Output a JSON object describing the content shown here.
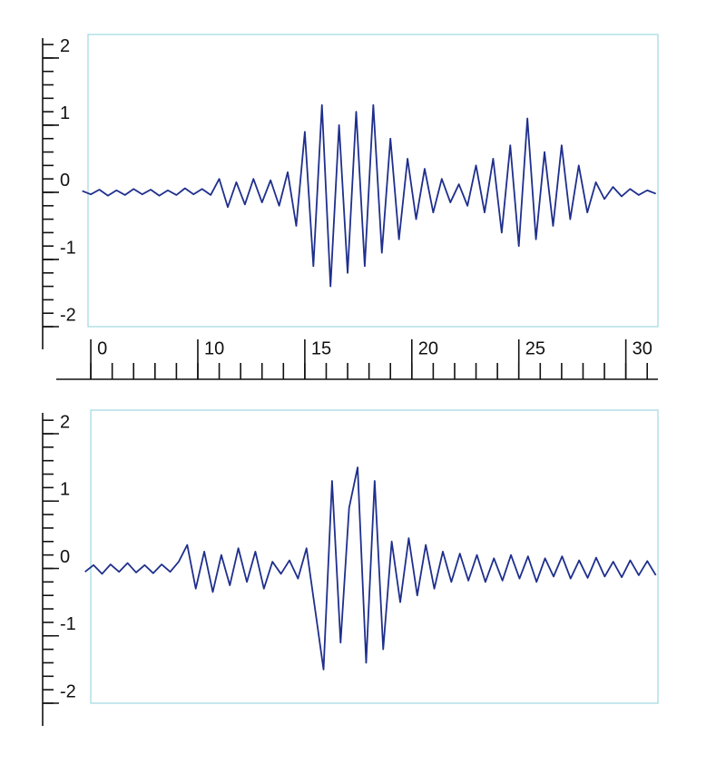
{
  "chart_data": [
    {
      "type": "line",
      "x": [
        -0.4,
        0,
        0.4,
        0.8,
        1.2,
        1.6,
        2,
        2.4,
        2.8,
        3.2,
        3.6,
        4,
        4.4,
        4.8,
        5.2,
        5.6,
        6,
        6.4,
        6.8,
        7.2,
        7.6,
        8,
        8.4,
        8.8,
        9.2,
        9.6,
        10,
        10.4,
        10.8,
        11.2,
        11.6,
        12,
        12.4,
        12.8,
        13.2,
        13.6,
        14,
        14.4,
        14.8,
        15.2,
        15.6,
        16,
        16.4,
        16.8,
        17.2,
        17.6,
        18,
        18.4,
        18.8,
        19.2,
        19.6,
        20,
        20.4,
        20.8,
        21.2,
        21.6,
        22,
        22.4,
        22.8,
        23.2,
        23.6,
        24,
        24.4,
        24.8,
        25.2,
        25.6,
        26,
        26.4
      ],
      "values": [
        0.02,
        -0.03,
        0.04,
        -0.05,
        0.03,
        -0.04,
        0.05,
        -0.03,
        0.04,
        -0.05,
        0.03,
        -0.04,
        0.06,
        -0.03,
        0.05,
        -0.04,
        0.2,
        -0.22,
        0.15,
        -0.18,
        0.2,
        -0.15,
        0.18,
        -0.2,
        0.3,
        -0.5,
        0.9,
        -1.1,
        1.3,
        -1.4,
        1.0,
        -1.2,
        1.2,
        -1.1,
        1.3,
        -0.9,
        0.8,
        -0.7,
        0.5,
        -0.4,
        0.35,
        -0.3,
        0.2,
        -0.15,
        0.12,
        -0.2,
        0.4,
        -0.3,
        0.5,
        -0.6,
        0.7,
        -0.8,
        1.1,
        -0.7,
        0.6,
        -0.5,
        0.7,
        -0.4,
        0.4,
        -0.3,
        0.15,
        -0.1,
        0.08,
        -0.06,
        0.05,
        -0.04,
        0.03,
        -0.02
      ],
      "color": "#1f2f8c",
      "xlim": [
        -0.13,
        26.5
      ],
      "xticks": [
        {
          "value": 0,
          "label": "0"
        },
        {
          "value": 5,
          "label": "10"
        },
        {
          "value": 10,
          "label": "15"
        },
        {
          "value": 15,
          "label": "20"
        },
        {
          "value": 20,
          "label": "25"
        },
        {
          "value": 25,
          "label": "30"
        }
      ],
      "ylim": [
        -2,
        2.35
      ],
      "yticks": [
        -2,
        -1,
        0,
        1,
        2
      ]
    },
    {
      "type": "line",
      "x": [
        -0.4,
        0,
        0.4,
        0.8,
        1.2,
        1.6,
        2,
        2.4,
        2.8,
        3.2,
        3.6,
        4,
        4.4,
        4.8,
        5.2,
        5.6,
        6,
        6.4,
        6.8,
        7.2,
        7.6,
        8,
        8.4,
        8.8,
        9.2,
        9.6,
        10,
        10.4,
        10.8,
        11.2,
        11.6,
        12,
        12.4,
        12.8,
        13.2,
        13.6,
        14,
        14.4,
        14.8,
        15.2,
        15.6,
        16,
        16.4,
        16.8,
        17.2,
        17.6,
        18,
        18.4,
        18.8,
        19.2,
        19.6,
        20,
        20.4,
        20.8,
        21.2,
        21.6,
        22,
        22.4,
        22.8,
        23.2,
        23.6,
        24,
        24.4,
        24.8,
        25.2,
        25.6,
        26,
        26.4
      ],
      "values": [
        -0.05,
        0.05,
        -0.08,
        0.06,
        -0.05,
        0.08,
        -0.06,
        0.05,
        -0.07,
        0.06,
        -0.05,
        0.1,
        0.35,
        -0.3,
        0.25,
        -0.35,
        0.2,
        -0.25,
        0.3,
        -0.2,
        0.25,
        -0.3,
        0.1,
        -0.08,
        0.12,
        -0.15,
        0.3,
        -0.6,
        -1.5,
        1.3,
        -1.1,
        0.9,
        1.5,
        -1.4,
        1.3,
        -1.2,
        0.4,
        -0.5,
        0.45,
        -0.4,
        0.35,
        -0.3,
        0.25,
        -0.2,
        0.22,
        -0.18,
        0.2,
        -0.2,
        0.15,
        -0.18,
        0.2,
        -0.15,
        0.18,
        -0.2,
        0.15,
        -0.12,
        0.18,
        -0.15,
        0.12,
        -0.14,
        0.16,
        -0.12,
        0.1,
        -0.13,
        0.12,
        -0.1,
        0.11,
        -0.1
      ],
      "color": "#1f2f8c",
      "xlim": [
        -0.13,
        26.5
      ],
      "ylim": [
        -2,
        2.35
      ],
      "yticks": [
        -2,
        -1,
        0,
        1,
        2
      ]
    }
  ]
}
